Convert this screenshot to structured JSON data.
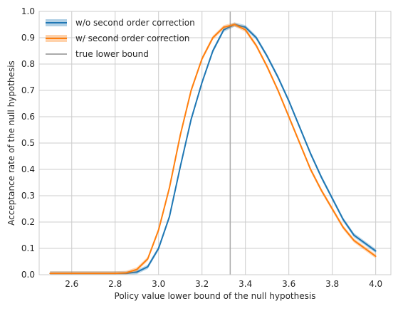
{
  "chart_data": {
    "type": "line",
    "title": "",
    "xlabel": "Policy value lower bound of the null hypothesis",
    "ylabel": "Acceptance rate of the null hypothesis",
    "xlim": [
      2.45,
      4.07
    ],
    "ylim": [
      0.0,
      1.0
    ],
    "xticks": [
      "2.6",
      "2.8",
      "3.0",
      "3.2",
      "3.4",
      "3.6",
      "3.8",
      "4.0"
    ],
    "xtick_values": [
      2.6,
      2.8,
      3.0,
      3.2,
      3.4,
      3.6,
      3.8,
      4.0
    ],
    "yticks": [
      "0.0",
      "0.1",
      "0.2",
      "0.3",
      "0.4",
      "0.5",
      "0.6",
      "0.7",
      "0.8",
      "0.9",
      "1.0"
    ],
    "ytick_values": [
      0.0,
      0.1,
      0.2,
      0.3,
      0.4,
      0.5,
      0.6,
      0.7,
      0.8,
      0.9,
      1.0
    ],
    "grid": true,
    "legend_position": "top-left",
    "vline": {
      "name": "true lower bound",
      "x": 3.33,
      "color": "#aaaaaa"
    },
    "series": [
      {
        "name": "w/o second order correction",
        "color": "#1f77b4",
        "x": [
          2.5,
          2.6,
          2.7,
          2.8,
          2.85,
          2.9,
          2.95,
          3.0,
          3.05,
          3.1,
          3.15,
          3.2,
          3.25,
          3.3,
          3.35,
          3.4,
          3.45,
          3.5,
          3.55,
          3.6,
          3.65,
          3.7,
          3.75,
          3.8,
          3.85,
          3.9,
          3.95,
          4.0
        ],
        "values": [
          0.005,
          0.005,
          0.005,
          0.005,
          0.005,
          0.01,
          0.03,
          0.1,
          0.22,
          0.41,
          0.59,
          0.73,
          0.85,
          0.93,
          0.95,
          0.94,
          0.9,
          0.83,
          0.75,
          0.66,
          0.56,
          0.46,
          0.37,
          0.29,
          0.21,
          0.15,
          0.12,
          0.09
        ]
      },
      {
        "name": "w/ second order correction",
        "color": "#ff7f0e",
        "x": [
          2.5,
          2.6,
          2.7,
          2.8,
          2.85,
          2.9,
          2.95,
          3.0,
          3.05,
          3.1,
          3.15,
          3.2,
          3.25,
          3.3,
          3.35,
          3.4,
          3.45,
          3.5,
          3.55,
          3.6,
          3.65,
          3.7,
          3.75,
          3.8,
          3.85,
          3.9,
          3.95,
          4.0
        ],
        "values": [
          0.005,
          0.005,
          0.005,
          0.005,
          0.007,
          0.02,
          0.06,
          0.17,
          0.33,
          0.53,
          0.7,
          0.82,
          0.9,
          0.94,
          0.95,
          0.93,
          0.87,
          0.79,
          0.7,
          0.6,
          0.5,
          0.4,
          0.32,
          0.25,
          0.18,
          0.13,
          0.1,
          0.07
        ]
      }
    ]
  }
}
